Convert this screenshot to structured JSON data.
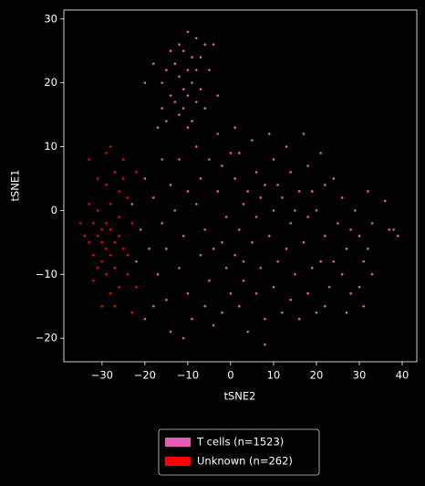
{
  "chart_data": {
    "type": "scatter",
    "x_label": "tSNE2",
    "y_label": "tSNE1",
    "xlim": [
      -38.9,
      43.4
    ],
    "ylim": [
      -23.7,
      31.4
    ],
    "xticks": [
      {
        "value": -30,
        "label": "−30"
      },
      {
        "value": -20,
        "label": "−20"
      },
      {
        "value": -10,
        "label": "−10"
      },
      0,
      10,
      20,
      30,
      40
    ],
    "yticks": [
      {
        "value": -20,
        "label": "−20"
      },
      {
        "value": -10,
        "label": "−10"
      },
      0,
      10,
      20,
      30
    ],
    "legend_position": "below",
    "series": [
      {
        "name": "T cells (n=1523)",
        "color": "#e55cb5",
        "x": [
          -10,
          -8,
          -12,
          -6,
          -4,
          -14,
          -11,
          -9,
          -7,
          -13,
          -15,
          -10,
          -8,
          -5,
          -12,
          -16,
          -9,
          -11,
          -7,
          -14,
          -10,
          -13,
          -8,
          -16,
          -11,
          -6,
          -12,
          -9,
          -15,
          -20,
          -18,
          -3,
          -17,
          -10,
          -20,
          -18,
          -16,
          -19,
          -17,
          -15,
          -14,
          -12,
          -13,
          -11,
          -12,
          -10,
          -9,
          -8,
          -7,
          -8,
          -6,
          -7,
          -5,
          -6,
          -4,
          -3,
          -2,
          -3,
          -1,
          -2,
          -1,
          0,
          -2,
          1,
          2,
          1,
          3,
          2,
          1,
          3,
          2,
          4,
          5,
          6,
          4,
          6,
          5,
          7,
          6,
          8,
          9,
          10,
          8,
          10,
          9,
          11,
          10,
          12,
          8,
          13,
          14,
          12,
          14,
          13,
          15,
          14,
          16,
          17,
          18,
          16,
          18,
          17,
          19,
          18,
          20,
          21,
          22,
          20,
          22,
          21,
          23,
          22,
          24,
          26,
          25,
          27,
          26,
          28,
          27,
          29,
          30,
          31,
          30,
          32,
          33,
          32,
          33,
          31,
          38,
          39,
          37,
          36,
          -21,
          -22,
          -18,
          -20,
          -14,
          -11,
          -23,
          -16,
          -5,
          0,
          11,
          15,
          24,
          28,
          19,
          7,
          -4,
          3,
          -10,
          -15
        ],
        "values": [
          28,
          27,
          26,
          26,
          26,
          25,
          25,
          24,
          24,
          23,
          22,
          22,
          22,
          22,
          21,
          20,
          20,
          19,
          19,
          18,
          18,
          17,
          17,
          16,
          16,
          16,
          15,
          14,
          14,
          20,
          23,
          18,
          13,
          13,
          5,
          2,
          -2,
          -6,
          -10,
          -14,
          4,
          8,
          0,
          -4,
          -9,
          -13,
          -17,
          10,
          5,
          1,
          -3,
          -7,
          -11,
          -15,
          -18,
          12,
          7,
          3,
          -1,
          -5,
          -9,
          -13,
          -16,
          13,
          9,
          5,
          1,
          -3,
          -7,
          -11,
          -15,
          -19,
          11,
          6,
          3,
          -1,
          -5,
          -9,
          -13,
          -17,
          12,
          8,
          4,
          0,
          -4,
          -8,
          -12,
          -16,
          -21,
          10,
          6,
          2,
          -2,
          -6,
          -10,
          -14,
          -17,
          12,
          7,
          3,
          -1,
          -5,
          -9,
          -13,
          -16,
          9,
          4,
          0,
          -4,
          -8,
          -12,
          -15,
          5,
          2,
          -2,
          -6,
          -10,
          -13,
          -16,
          0,
          -4,
          -8,
          -12,
          3,
          -2,
          -6,
          -10,
          -15,
          -3,
          -4,
          -3,
          1.5,
          -3,
          -8,
          -15,
          -17,
          -19,
          -20,
          1,
          8,
          8,
          9,
          4,
          0,
          -8,
          -3,
          3,
          2,
          -6,
          -8,
          3,
          -6
        ]
      },
      {
        "name": "Unknown (n=262)",
        "color": "#ff0000",
        "x": [
          -30,
          -31,
          -29,
          -32,
          -28,
          -30,
          -33,
          -27,
          -29,
          -31,
          -28,
          -32,
          -30,
          -26,
          -34,
          -29,
          -27,
          -31,
          -28,
          -26,
          -25,
          -27,
          -24,
          -26,
          -23,
          -25,
          -24,
          -26,
          -28,
          -30,
          -22,
          -23,
          -33,
          -29,
          -31,
          -35,
          -32,
          -25,
          -22,
          -27,
          -29,
          -24,
          -33,
          -28
        ],
        "values": [
          -5,
          -4,
          -6,
          -7,
          -3,
          -8,
          -5,
          -5,
          -2,
          -9,
          -7,
          -2,
          -3,
          -4,
          -4,
          -10,
          -9,
          0,
          1,
          3,
          5,
          6,
          2,
          -1,
          -2,
          -6,
          -10,
          -12,
          -13,
          -15,
          -12,
          -16,
          8,
          9,
          5,
          -2,
          -11,
          8,
          6,
          -15,
          4,
          -7,
          1,
          10
        ]
      }
    ]
  }
}
